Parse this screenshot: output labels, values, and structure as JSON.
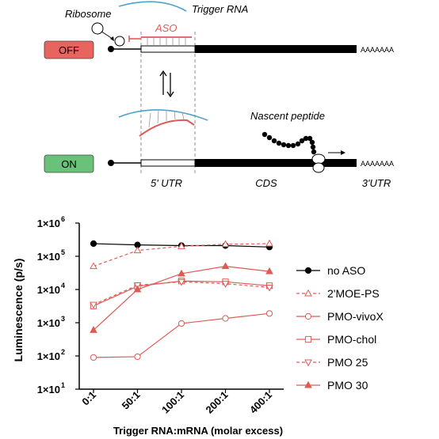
{
  "schematic": {
    "ribosome_label": "Ribosome",
    "trigger_label": "Trigger RNA",
    "aso_label": "ASO",
    "off_label": "OFF",
    "on_label": "ON",
    "polyA_top": "AAAAAAA",
    "polyA_bottom": "AAAAAAA",
    "nascent_label": "Nascent peptide",
    "utr5_label": "5' UTR",
    "cds_label": "CDS",
    "utr3_label": "3'UTR",
    "colors": {
      "off_box": "#e8645f",
      "on_box": "#6ac27a",
      "aso": "#e05a55",
      "trigger": "#4fa3c9"
    }
  },
  "chart_data": {
    "type": "line",
    "ylabel": "Luminescence (p/s)",
    "xlabel": "Trigger RNA:mRNA (molar excess)",
    "categories": [
      "0:1",
      "50:1",
      "100:1",
      "200:1",
      "400:1"
    ],
    "y_scale": "log",
    "ylim": [
      10,
      1000000
    ],
    "y_ticks": [
      {
        "value": 10,
        "base": "1×10",
        "exp": "1"
      },
      {
        "value": 100,
        "base": "1×10",
        "exp": "2"
      },
      {
        "value": 1000,
        "base": "1×10",
        "exp": "3"
      },
      {
        "value": 10000,
        "base": "1×10",
        "exp": "4"
      },
      {
        "value": 100000,
        "base": "1×10",
        "exp": "5"
      },
      {
        "value": 1000000,
        "base": "1×10",
        "exp": "6"
      }
    ],
    "series": [
      {
        "name": "no ASO",
        "values": [
          240000,
          220000,
          210000,
          210000,
          190000
        ],
        "color": "#000000",
        "marker": "circle-filled",
        "dash": false
      },
      {
        "name": "2'MOE-PS",
        "values": [
          50000,
          150000,
          200000,
          230000,
          240000
        ],
        "color": "#e05a55",
        "marker": "triangle-up-open",
        "dash": true
      },
      {
        "name": "PMO-vivoX",
        "values": [
          90,
          95,
          950,
          1350,
          1900
        ],
        "color": "#e05a55",
        "marker": "circle-open",
        "dash": false
      },
      {
        "name": "PMO-chol",
        "values": [
          3200,
          12500,
          18000,
          17000,
          13000
        ],
        "color": "#e05a55",
        "marker": "square-open",
        "dash": false
      },
      {
        "name": "PMO 25",
        "values": [
          3500,
          13500,
          17000,
          15000,
          11500
        ],
        "color": "#e05a55",
        "marker": "triangle-down-open",
        "dash": true
      },
      {
        "name": "PMO 30",
        "values": [
          600,
          10000,
          30000,
          50000,
          35000
        ],
        "color": "#e05a55",
        "marker": "triangle-up-filled",
        "dash": false
      }
    ]
  }
}
